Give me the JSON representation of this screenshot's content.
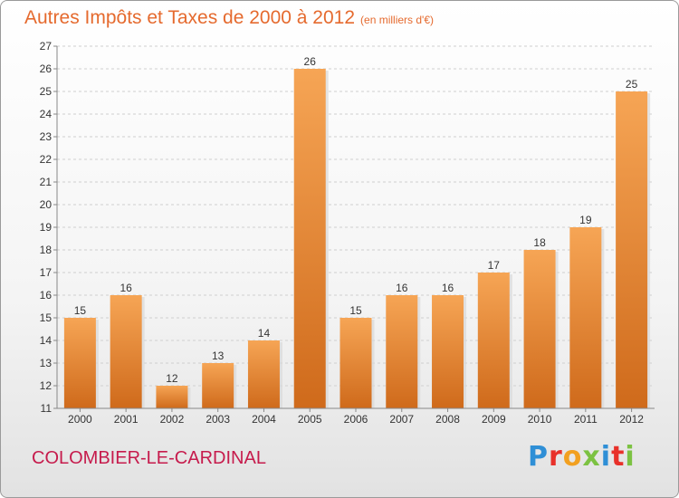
{
  "header": {
    "title": "Autres Impôts et Taxes de 2000 à 2012",
    "unit": "(en milliers d'€)"
  },
  "footer": {
    "commune": "COLOMBIER-LE-CARDINAL",
    "logo_text": "Proxiti"
  },
  "colors": {
    "title": "#e56a2e",
    "commune": "#c61b4c",
    "bar_light": "#f6a555",
    "bar_dark": "#cf6a1b",
    "logo": [
      "#2f8fd6",
      "#e8312a",
      "#f2a020",
      "#7cc242",
      "#2f8fd6",
      "#e8312a",
      "#7cc242"
    ]
  },
  "chart_data": {
    "type": "bar",
    "title": "Autres Impôts et Taxes de 2000 à 2012",
    "subtitle": "(en milliers d'€)",
    "categories": [
      "2000",
      "2001",
      "2002",
      "2003",
      "2004",
      "2005",
      "2006",
      "2007",
      "2008",
      "2009",
      "2010",
      "2011",
      "2012"
    ],
    "values": [
      15,
      16,
      12,
      13,
      14,
      26,
      15,
      16,
      16,
      17,
      18,
      19,
      25
    ],
    "ylim": [
      11,
      27
    ],
    "yticks": [
      11,
      12,
      13,
      14,
      15,
      16,
      17,
      18,
      19,
      20,
      21,
      22,
      23,
      24,
      25,
      26,
      27
    ],
    "grid": true,
    "legend": "none"
  }
}
